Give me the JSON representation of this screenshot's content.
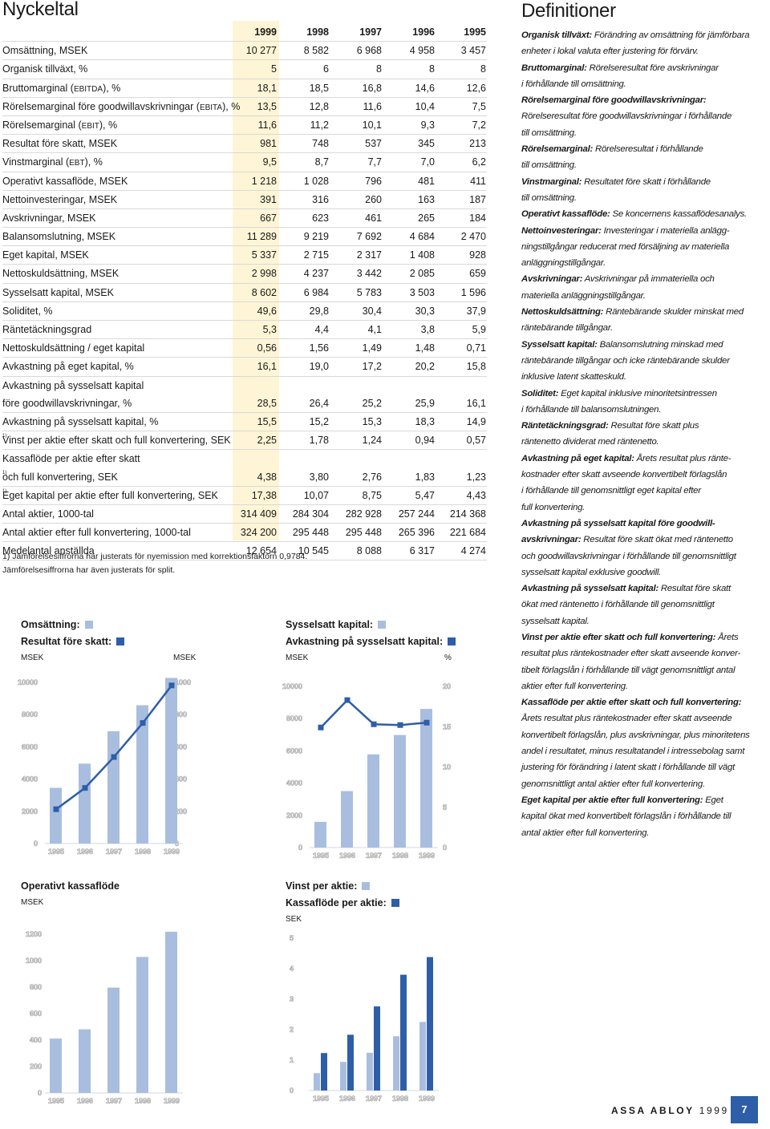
{
  "titles": {
    "key_figures": "Nyckeltal",
    "definitions": "Definitioner"
  },
  "table": {
    "years": [
      "1999",
      "1998",
      "1997",
      "1996",
      "1995"
    ],
    "rows": [
      {
        "label": "Omsättning, MSEK",
        "values": [
          "10 277",
          "8 582",
          "6 968",
          "4 958",
          "3 457"
        ]
      },
      {
        "label": "Organisk tillväxt, %",
        "values": [
          "5",
          "6",
          "8",
          "8",
          "8"
        ]
      },
      {
        "label": "Bruttomarginal (EBITDA), %",
        "values": [
          "18,1",
          "18,5",
          "16,8",
          "14,6",
          "12,6"
        ]
      },
      {
        "label": "Rörelsemarginal före goodwillavskrivningar (EBITA), %",
        "values": [
          "13,5",
          "12,8",
          "11,6",
          "10,4",
          "7,5"
        ]
      },
      {
        "label": "Rörelsemarginal (EBIT), %",
        "values": [
          "11,6",
          "11,2",
          "10,1",
          "9,3",
          "7,2"
        ]
      },
      {
        "label": "Resultat före skatt, MSEK",
        "values": [
          "981",
          "748",
          "537",
          "345",
          "213"
        ]
      },
      {
        "label": "Vinstmarginal (EBT), %",
        "values": [
          "9,5",
          "8,7",
          "7,7",
          "7,0",
          "6,2"
        ]
      },
      {
        "label": "Operativt kassaflöde, MSEK",
        "values": [
          "1 218",
          "1 028",
          "796",
          "481",
          "411"
        ]
      },
      {
        "label": "Nettoinvesteringar, MSEK",
        "values": [
          "391",
          "316",
          "260",
          "163",
          "187"
        ]
      },
      {
        "label": "Avskrivningar, MSEK",
        "values": [
          "667",
          "623",
          "461",
          "265",
          "184"
        ]
      },
      {
        "label": "Balansomslutning, MSEK",
        "values": [
          "11 289",
          "9 219",
          "7 692",
          "4 684",
          "2 470"
        ]
      },
      {
        "label": "Eget kapital, MSEK",
        "values": [
          "5 337",
          "2 715",
          "2 317",
          "1 408",
          "928"
        ]
      },
      {
        "label": "Nettoskuldsättning, MSEK",
        "values": [
          "2 998",
          "4 237",
          "3 442",
          "2 085",
          "659"
        ]
      },
      {
        "label": "Sysselsatt kapital, MSEK",
        "values": [
          "8 602",
          "6 984",
          "5 783",
          "3 503",
          "1 596"
        ]
      },
      {
        "label": "Soliditet, %",
        "values": [
          "49,6",
          "29,8",
          "30,4",
          "30,3",
          "37,9"
        ]
      },
      {
        "label": "Räntetäckningsgrad",
        "values": [
          "5,3",
          "4,4",
          "4,1",
          "3,8",
          "5,9"
        ]
      },
      {
        "label": "Nettoskuldsättning / eget kapital",
        "values": [
          "0,56",
          "1,56",
          "1,49",
          "1,48",
          "0,71"
        ]
      },
      {
        "label": "Avkastning på eget kapital, %",
        "values": [
          "16,1",
          "19,0",
          "17,2",
          "20,2",
          "15,8"
        ]
      },
      {
        "label": "Avkastning på sysselsatt kapital",
        "values": [
          "",
          "",
          "",
          "",
          ""
        ]
      },
      {
        "label": "före goodwillavskrivningar, %",
        "values": [
          "28,5",
          "26,4",
          "25,2",
          "25,9",
          "16,1"
        ]
      },
      {
        "label": "Avkastning på sysselsatt kapital, %",
        "values": [
          "15,5",
          "15,2",
          "15,3",
          "18,3",
          "14,9"
        ]
      },
      {
        "label": "Vinst per aktie efter skatt och full konvertering, SEK",
        "sup": "1)",
        "values": [
          "2,25",
          "1,78",
          "1,24",
          "0,94",
          "0,57"
        ]
      },
      {
        "label": "Kassaflöde per aktie efter skatt",
        "values": [
          "",
          "",
          "",
          "",
          ""
        ]
      },
      {
        "label": "och full konvertering, SEK",
        "sup": "1)",
        "values": [
          "4,38",
          "3,80",
          "2,76",
          "1,83",
          "1,23"
        ]
      },
      {
        "label": "Eget kapital per aktie efter full konvertering, SEK",
        "sup": "1)",
        "values": [
          "17,38",
          "10,07",
          "8,75",
          "5,47",
          "4,43"
        ]
      },
      {
        "label": "Antal aktier, 1000-tal",
        "values": [
          "314 409",
          "284 304",
          "282 928",
          "257 244",
          "214 368"
        ]
      },
      {
        "label": "Antal aktier efter full konvertering, 1000-tal",
        "values": [
          "324 200",
          "295 448",
          "295 448",
          "265 396",
          "221 684"
        ]
      },
      {
        "label": "Medelantal anställda",
        "values": [
          "12 654",
          "10 545",
          "8 088",
          "6 317",
          "4 274"
        ]
      }
    ]
  },
  "footnote": {
    "line1": "1) Jämförelsesiffrorna har justerats för nyemission med korrektionsfaktorn 0,9784.",
    "line2": "Jämförelsesiffrorna har även justerats för split."
  },
  "definitions": [
    {
      "term": "Organisk tillväxt:",
      "lines": [
        "Förändring av omsättning för jämförbara",
        "enheter i lokal valuta efter justering för förvärv."
      ]
    },
    {
      "term": "Bruttomarginal:",
      "lines": [
        "Rörelseresultat före avskrivningar",
        "i förhållande till omsättning."
      ]
    },
    {
      "term": "Rörelsemarginal före goodwillavskrivningar:",
      "lines": [
        "",
        "Rörelseresultat före goodwillavskrivningar i förhållande",
        "till omsättning."
      ]
    },
    {
      "term": "Rörelsemarginal:",
      "lines": [
        "Rörelseresultat i förhållande",
        "till omsättning."
      ]
    },
    {
      "term": "Vinstmarginal:",
      "lines": [
        "Resultatet före skatt i förhållande",
        "till omsättning."
      ]
    },
    {
      "term": "Operativt kassaflöde:",
      "lines": [
        "Se koncernens kassaflödesanalys."
      ]
    },
    {
      "term": "Nettoinvesteringar:",
      "lines": [
        "Investeringar i materiella anlägg-",
        "ningstillgångar reducerat med försäljning av materiella",
        "anläggningstillgångar."
      ]
    },
    {
      "term": "Avskrivningar:",
      "lines": [
        "Avskrivningar på immateriella och",
        "materiella anläggningstillgångar."
      ]
    },
    {
      "term": "Nettoskuldsättning:",
      "lines": [
        "Räntebärande skulder minskat med",
        "räntebärande tillgångar."
      ]
    },
    {
      "term": "Sysselsatt kapital:",
      "lines": [
        "Balansomslutning minskad med",
        "räntebärande tillgångar och icke räntebärande skulder",
        "inklusive latent skatteskuld."
      ]
    },
    {
      "term": "Soliditet:",
      "lines": [
        "Eget kapital inklusive minoritetsintressen",
        "i förhållande till balansomslutningen."
      ]
    },
    {
      "term": "Räntetäckningsgrad:",
      "lines": [
        "Resultat före skatt plus",
        "räntenetto dividerat med räntenetto."
      ]
    },
    {
      "term": "Avkastning på eget kapital:",
      "lines": [
        "Årets resultat plus ränte-",
        "kostnader efter skatt avseende konvertibelt förlagslån",
        "i förhållande till genomsnittligt eget kapital efter",
        "full konvertering."
      ]
    },
    {
      "term": "Avkastning på sysselsatt kapital före goodwill-",
      "term2": "avskrivningar:",
      "lines": [
        "Resultat före skatt ökat med räntenetto",
        "och goodwillavskrivningar i förhållande till genomsnittligt",
        "sysselsatt kapital exklusive goodwill."
      ]
    },
    {
      "term": "Avkastning på sysselsatt kapital:",
      "lines": [
        "Resultat före skatt",
        "ökat med räntenetto i förhållande till genomsnittligt",
        "sysselsatt kapital."
      ]
    },
    {
      "term": "Vinst per aktie efter skatt och full konvertering:",
      "lines": [
        "Årets",
        "resultat plus räntekostnader efter skatt avseende konver-",
        "tibelt förlagslån i förhållande till vägt genomsnittligt antal",
        "aktier efter full konvertering."
      ]
    },
    {
      "term": "Kassaflöde per aktie efter skatt och full konvertering:",
      "lines": [
        "",
        "Årets resultat plus räntekostnader efter skatt avseende",
        "konvertibelt förlagslån, plus avskrivningar, plus minoritetens",
        "andel i resultatet, minus resultatandel i intressebolag samt",
        "justering för förändring i latent skatt i förhållande till vägt",
        "genomsnittligt antal aktier efter full konvertering."
      ]
    },
    {
      "term": "Eget kapital per aktie efter full konvertering:",
      "lines": [
        "Eget",
        "kapital ökat med konvertibelt förlagslån i förhållande till",
        "antal aktier efter full konvertering."
      ]
    }
  ],
  "colors": {
    "light": "#a9bedf",
    "dark": "#2e5ea7",
    "highlight": "#fdf5d6"
  },
  "chart_data": [
    {
      "type": "bar",
      "legend": [
        {
          "name": "Omsättning:",
          "color": "#a9bedf"
        },
        {
          "name": "Resultat före skatt:",
          "color": "#2e5ea7"
        }
      ],
      "left_unit": "MSEK",
      "right_unit": "MSEK",
      "categories": [
        "1995",
        "1996",
        "1997",
        "1998",
        "1999"
      ],
      "series": [
        {
          "name": "Omsättning:",
          "type": "bar",
          "axis": "left",
          "values": [
            3457,
            4958,
            6968,
            8582,
            10277
          ]
        },
        {
          "name": "Resultat före skatt:",
          "type": "line",
          "axis": "right",
          "values": [
            213,
            345,
            537,
            748,
            981
          ]
        }
      ],
      "left_ticks": [
        "0",
        "2000",
        "4000",
        "6000",
        "8000",
        "10000"
      ],
      "left_ylim": [
        0,
        10000
      ],
      "right_ticks": [
        "0",
        "200",
        "400",
        "600",
        "800",
        "1000"
      ],
      "right_ylim": [
        0,
        1000
      ]
    },
    {
      "type": "bar",
      "legend": [
        {
          "name": "Sysselsatt kapital:",
          "color": "#a9bedf"
        },
        {
          "name": "Avkastning på sysselsatt kapital:",
          "color": "#2e5ea7"
        }
      ],
      "left_unit": "MSEK",
      "right_unit": "%",
      "categories": [
        "1995",
        "1996",
        "1997",
        "1998",
        "1999"
      ],
      "series": [
        {
          "name": "Sysselsatt kapital:",
          "type": "bar",
          "axis": "left",
          "values": [
            1596,
            3503,
            5783,
            6984,
            8602
          ]
        },
        {
          "name": "Avkastning på sysselsatt kapital:",
          "type": "line",
          "axis": "right",
          "values": [
            14.9,
            18.3,
            15.3,
            15.2,
            15.5
          ]
        }
      ],
      "left_ticks": [
        "0",
        "2000",
        "4000",
        "6000",
        "8000",
        "10000"
      ],
      "left_ylim": [
        0,
        10000
      ],
      "right_ticks": [
        "0",
        "5",
        "10",
        "15",
        "20"
      ],
      "right_ylim": [
        0,
        20
      ]
    },
    {
      "type": "bar",
      "title": "Operativt kassaflöde",
      "left_unit": "MSEK",
      "categories": [
        "1995",
        "1996",
        "1997",
        "1998",
        "1999"
      ],
      "series": [
        {
          "name": "Operativt kassaflöde",
          "type": "bar",
          "axis": "left",
          "values": [
            411,
            481,
            796,
            1028,
            1218
          ]
        }
      ],
      "left_ticks": [
        "0",
        "200",
        "400",
        "600",
        "800",
        "1000",
        "1200"
      ],
      "left_ylim": [
        0,
        1200
      ]
    },
    {
      "type": "bar",
      "legend": [
        {
          "name": "Vinst per aktie:",
          "color": "#a9bedf"
        },
        {
          "name": "Kassaflöde per aktie:",
          "color": "#2e5ea7"
        }
      ],
      "left_unit": "SEK",
      "categories": [
        "1995",
        "1996",
        "1997",
        "1998",
        "1999"
      ],
      "series": [
        {
          "name": "Vinst per aktie:",
          "type": "bar",
          "values": [
            0.57,
            0.94,
            1.24,
            1.78,
            2.25
          ]
        },
        {
          "name": "Kassaflöde per aktie:",
          "type": "bar",
          "values": [
            1.23,
            1.83,
            2.76,
            3.8,
            4.38
          ]
        }
      ],
      "left_ticks": [
        "0",
        "1",
        "2",
        "3",
        "4",
        "5"
      ],
      "left_ylim": [
        0,
        5
      ]
    }
  ],
  "footer": {
    "brand": "ASSA ABLOY",
    "year": "1999",
    "page": "7"
  }
}
